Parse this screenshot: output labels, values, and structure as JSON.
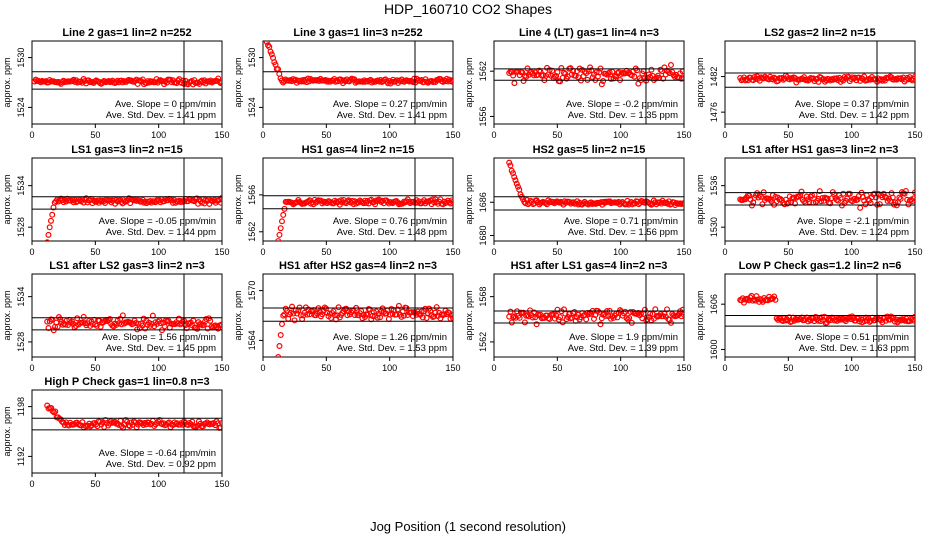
{
  "figure": {
    "title": "HDP_160710  CO2 Shapes",
    "xlabel": "Jog Position (1 second resolution)",
    "ylabel": "approx. ppm",
    "slope_prefix": "Ave. Slope = ",
    "slope_unit": "ppm/min",
    "std_prefix": "Ave. Std. Dev. = ",
    "std_unit": "ppm"
  },
  "chart_data": [
    {
      "type": "scatter",
      "title": "Line 2 gas=1 lin=2 n=252",
      "slope": "0",
      "std": "1.41",
      "xlim": [
        0,
        150
      ],
      "ylim": [
        1522,
        1532
      ],
      "yticks": [
        1524,
        1530
      ],
      "xticks": [
        0,
        50,
        100,
        150
      ],
      "hlines": [
        1528.3,
        1526.2
      ],
      "vline": 120,
      "color": "#ff0000",
      "n_points": 150,
      "series_pattern": "flat",
      "y_center": 1527.1,
      "y_noise": 0.25
    },
    {
      "type": "scatter",
      "title": "Line 3 gas=1 lin=3 n=252",
      "slope": "0.27",
      "std": "1.41",
      "xlim": [
        0,
        150
      ],
      "ylim": [
        1522,
        1532
      ],
      "yticks": [
        1524,
        1530
      ],
      "xticks": [
        0,
        50,
        100,
        150
      ],
      "hlines": [
        1528.3,
        1526.2
      ],
      "vline": 120,
      "color": "#ff0000",
      "n_points": 150,
      "series_pattern": "drop_start",
      "y_center": 1527.2,
      "y_noise": 0.2,
      "y_start": 1532
    },
    {
      "type": "scatter",
      "title": "Line 4 (LT) gas=1 lin=4 n=3",
      "slope": "-0.2",
      "std": "1.35",
      "xlim": [
        0,
        150
      ],
      "ylim": [
        1555,
        1566
      ],
      "yticks": [
        1556,
        1562
      ],
      "xticks": [
        0,
        50,
        100,
        150
      ],
      "hlines": [
        1562.3,
        1560.8
      ],
      "vline": 120,
      "color": "#ff0000",
      "n_points": 135,
      "series_pattern": "noisy",
      "y_center": 1561.6,
      "y_noise": 0.9
    },
    {
      "type": "scatter",
      "title": "LS2 gas=2 lin=2 n=15",
      "slope": "0.37",
      "std": "1.42",
      "xlim": [
        0,
        150
      ],
      "ylim": [
        1474,
        1488
      ],
      "yticks": [
        1476,
        1482
      ],
      "xticks": [
        0,
        50,
        100,
        150
      ],
      "hlines": [
        1482.6,
        1480.2
      ],
      "vline": 120,
      "color": "#ff0000",
      "n_points": 135,
      "series_pattern": "flat",
      "y_center": 1481.6,
      "y_noise": 0.4
    },
    {
      "type": "scatter",
      "title": "LS1 gas=3 lin=2 n=15",
      "slope": "-0.05",
      "std": "1.44",
      "xlim": [
        0,
        150
      ],
      "ylim": [
        1526,
        1538
      ],
      "yticks": [
        1528,
        1534
      ],
      "xticks": [
        0,
        50,
        100,
        150
      ],
      "hlines": [
        1532.4,
        1530.6
      ],
      "vline": 120,
      "color": "#ff0000",
      "n_points": 140,
      "series_pattern": "rise_start",
      "y_center": 1531.8,
      "y_noise": 0.3,
      "y_start": 1526
    },
    {
      "type": "scatter",
      "title": "HS1 gas=4 lin=2 n=15",
      "slope": "0.76",
      "std": "1.48",
      "xlim": [
        0,
        150
      ],
      "ylim": [
        1561,
        1570
      ],
      "yticks": [
        1562,
        1566
      ],
      "xticks": [
        0,
        50,
        100,
        150
      ],
      "hlines": [
        1565.9,
        1564.5
      ],
      "vline": 120,
      "color": "#ff0000",
      "n_points": 140,
      "series_pattern": "rise_start",
      "y_center": 1565.2,
      "y_noise": 0.25,
      "y_start": 1561
    },
    {
      "type": "scatter",
      "title": "HS2 gas=5 lin=2 n=15",
      "slope": "0.71",
      "std": "1.56",
      "xlim": [
        0,
        150
      ],
      "ylim": [
        1679,
        1694
      ],
      "yticks": [
        1680,
        1686
      ],
      "xticks": [
        0,
        50,
        100,
        150
      ],
      "hlines": [
        1687.0,
        1684.6
      ],
      "vline": 120,
      "color": "#ff0000",
      "n_points": 140,
      "series_pattern": "drop_start",
      "y_center": 1685.9,
      "y_noise": 0.35,
      "y_start": 1693
    },
    {
      "type": "scatter",
      "title": "LS1 after HS1 gas=3 lin=2 n=3",
      "slope": "-2.1",
      "std": "1.24",
      "xlim": [
        0,
        150
      ],
      "ylim": [
        1528,
        1540
      ],
      "yticks": [
        1530,
        1536
      ],
      "xticks": [
        0,
        50,
        100,
        150
      ],
      "hlines": [
        1535.0,
        1533.2
      ],
      "vline": 120,
      "color": "#ff0000",
      "n_points": 135,
      "series_pattern": "noisy",
      "y_center": 1534.1,
      "y_noise": 0.9
    },
    {
      "type": "scatter",
      "title": "LS1 after LS2 gas=3 lin=2 n=3",
      "slope": "1.56",
      "std": "1.45",
      "xlim": [
        0,
        150
      ],
      "ylim": [
        1526,
        1537
      ],
      "yticks": [
        1528,
        1534
      ],
      "xticks": [
        0,
        50,
        100,
        150
      ],
      "hlines": [
        1531.2,
        1529.6
      ],
      "vline": 120,
      "color": "#ff0000",
      "n_points": 135,
      "series_pattern": "noisy",
      "y_center": 1530.5,
      "y_noise": 0.7
    },
    {
      "type": "scatter",
      "title": "HS1 after HS2 gas=4 lin=2 n=3",
      "slope": "1.26",
      "std": "1.53",
      "xlim": [
        0,
        150
      ],
      "ylim": [
        1562,
        1572
      ],
      "yticks": [
        1564,
        1570
      ],
      "xticks": [
        0,
        50,
        100,
        150
      ],
      "hlines": [
        1567.9,
        1566.3
      ],
      "vline": 120,
      "color": "#ff0000",
      "n_points": 140,
      "series_pattern": "noisy_rise",
      "y_center": 1567.3,
      "y_noise": 0.6,
      "y_start": 1562
    },
    {
      "type": "scatter",
      "title": "HS1 after LS1 gas=4 lin=2 n=3",
      "slope": "1.9",
      "std": "1.39",
      "xlim": [
        0,
        150
      ],
      "ylim": [
        1560,
        1571
      ],
      "yticks": [
        1562,
        1568
      ],
      "xticks": [
        0,
        50,
        100,
        150
      ],
      "hlines": [
        1566.1,
        1564.5
      ],
      "vline": 120,
      "color": "#ff0000",
      "n_points": 135,
      "series_pattern": "noisy",
      "y_center": 1565.5,
      "y_noise": 0.8
    },
    {
      "type": "scatter",
      "title": "Low P Check gas=1.2 lin=2 n=6",
      "slope": "0.51",
      "std": "1.63",
      "xlim": [
        0,
        150
      ],
      "ylim": [
        1599,
        1610
      ],
      "yticks": [
        1600,
        1606
      ],
      "xticks": [
        0,
        50,
        100,
        150
      ],
      "hlines": [
        1604.5,
        1603.1
      ],
      "vline": 120,
      "color": "#ff0000",
      "n_points": 140,
      "series_pattern": "step_down",
      "y_center": 1604.0,
      "y_noise": 0.35,
      "y_start": 1606.6
    },
    {
      "type": "scatter",
      "title": "High P Check gas=1 lin=0.8 n=3",
      "slope": "-0.64",
      "std": "0.92",
      "xlim": [
        0,
        150
      ],
      "ylim": [
        1190,
        1200
      ],
      "yticks": [
        1192,
        1198
      ],
      "xticks": [
        0,
        50,
        100,
        150
      ],
      "hlines": [
        1196.6,
        1195.2
      ],
      "vline": 120,
      "color": "#ff0000",
      "n_points": 130,
      "series_pattern": "drop_start",
      "y_center": 1195.9,
      "y_noise": 0.35,
      "y_start": 1198.3
    }
  ]
}
